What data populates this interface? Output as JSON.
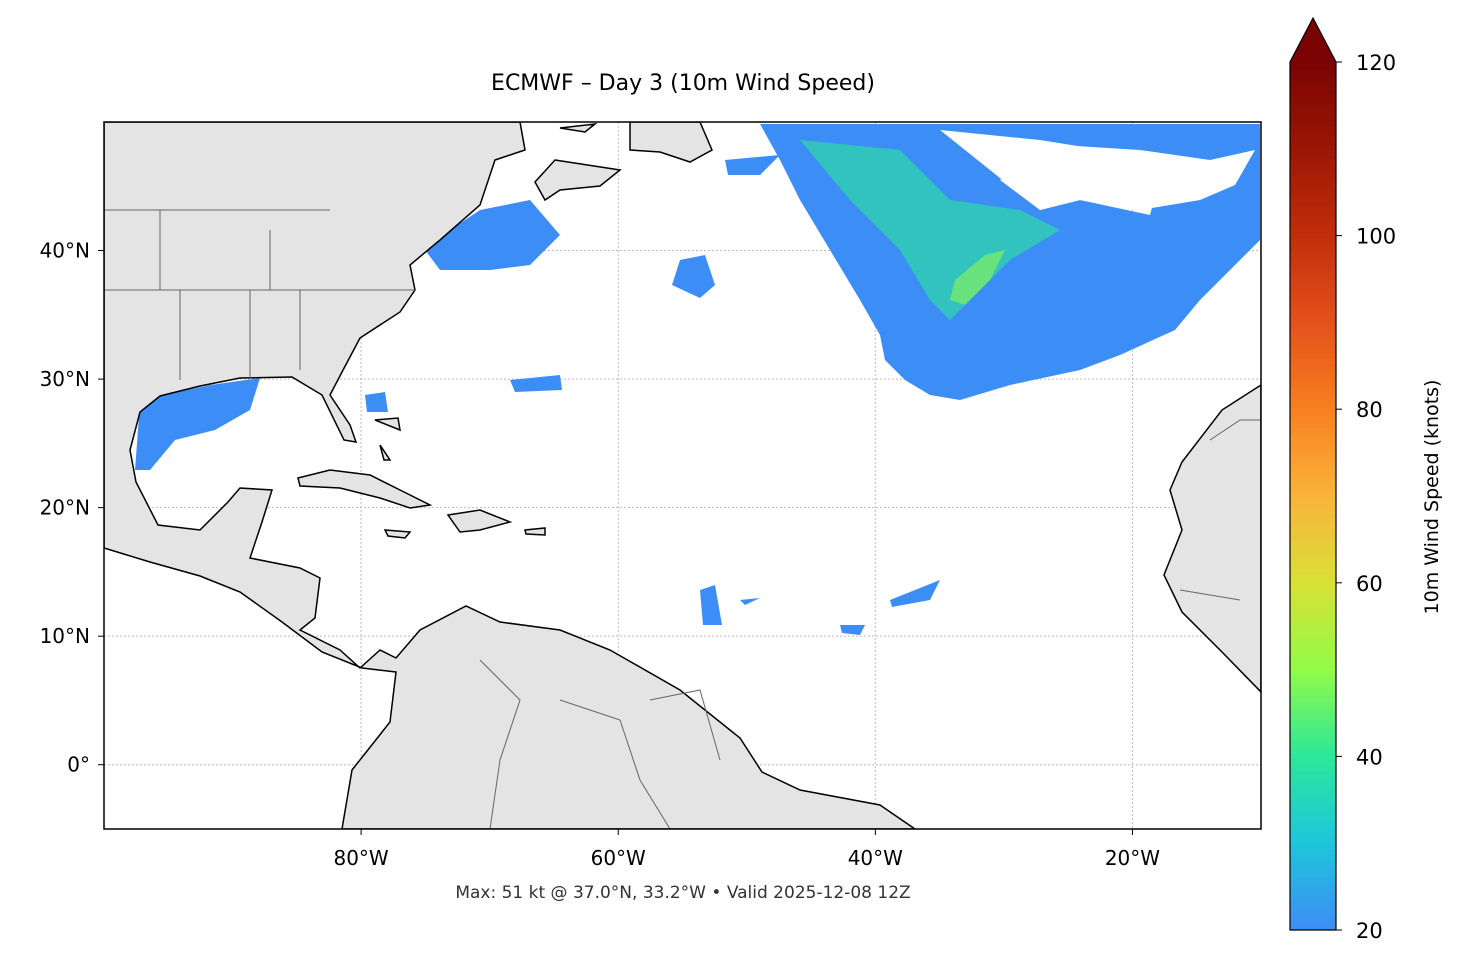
{
  "map": {
    "title": "ECMWF – Day 3 (10m Wind Speed)",
    "footer": "Max: 51 kt @ 37.0°N, 33.2°W • Valid 2025-12-08 12Z",
    "lonlim": [
      -100,
      -10
    ],
    "latlim": [
      -5,
      50
    ],
    "xticks": [
      {
        "value": -80,
        "label": "80°W"
      },
      {
        "value": -60,
        "label": "60°W"
      },
      {
        "value": -40,
        "label": "40°W"
      },
      {
        "value": -20,
        "label": "20°W"
      }
    ],
    "yticks": [
      {
        "value": 0,
        "label": "0°"
      },
      {
        "value": 10,
        "label": "10°N"
      },
      {
        "value": 20,
        "label": "20°N"
      },
      {
        "value": 30,
        "label": "30°N"
      },
      {
        "value": 40,
        "label": "40°N"
      }
    ],
    "colorbar": {
      "label": "10m Wind Speed (knots)",
      "range": [
        20,
        120
      ],
      "ticks": [
        20,
        40,
        60,
        80,
        100,
        120
      ],
      "colors": [
        "#3d8df6",
        "#1ec6db",
        "#2be79a",
        "#93fb46",
        "#d9e036",
        "#fab33b",
        "#f8801f",
        "#e4511a",
        "#c22e0a",
        "#9c1604",
        "#7a0403"
      ],
      "extend": "max"
    }
  }
}
